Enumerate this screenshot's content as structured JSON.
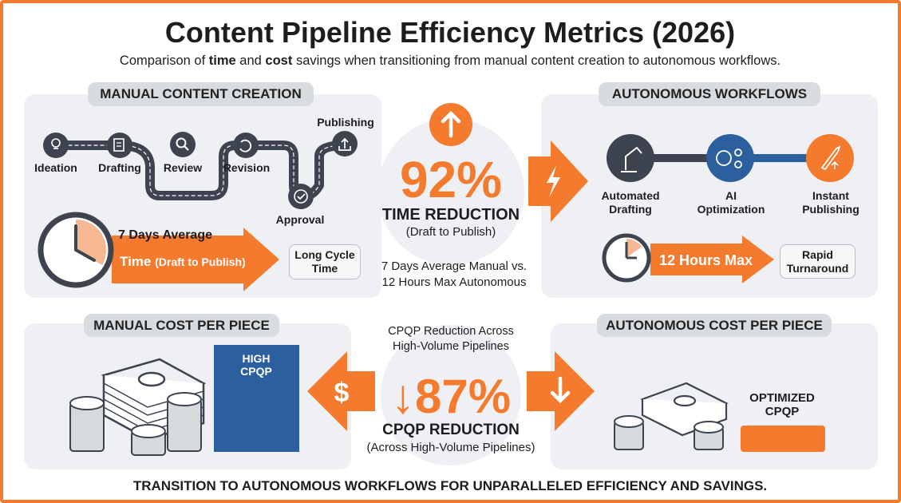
{
  "title": "Content Pipeline Efficiency Metrics (2026)",
  "subtitle": {
    "pre": "Comparison of ",
    "b1": "time",
    "mid": " and ",
    "b2": "cost",
    "post": " savings when transitioning from manual content creation to autonomous workflows."
  },
  "manual": {
    "heading": "MANUAL CONTENT CREATION",
    "steps": [
      "Ideation",
      "Drafting",
      "Review",
      "Revision",
      "Approval",
      "Publishing"
    ],
    "step_icons": [
      "lightbulb-icon",
      "document-edit-icon",
      "search-icon",
      "refresh-icon",
      "check-icon",
      "upload-icon"
    ],
    "duration": "7 Days Average",
    "arrow_main": "Time",
    "arrow_sub": "(Draft to Publish)",
    "badge": "Long Cycle Time"
  },
  "time_metric": {
    "value": "92%",
    "label": "TIME REDUCTION",
    "sub": "(Draft to Publish)",
    "note_line1": "7 Days Average Manual vs.",
    "note_line2": "12 Hours Max Autonomous"
  },
  "autonomous": {
    "heading": "AUTONOMOUS WORKFLOWS",
    "steps": [
      {
        "line1": "Automated",
        "line2": "Drafting",
        "icon": "robot-arm-icon",
        "color": "#3d4450"
      },
      {
        "line1": "AI",
        "line2": "Optimization",
        "icon": "brain-gear-icon",
        "color": "#2b5f9e"
      },
      {
        "line1": "Instant",
        "line2": "Publishing",
        "icon": "rocket-icon",
        "color": "#f47a2e"
      }
    ],
    "duration": "12 Hours Max",
    "badge": "Rapid Turnaround"
  },
  "manual_cost": {
    "heading": "MANUAL COST PER PIECE",
    "bar_label_1": "HIGH",
    "bar_label_2": "CPQP"
  },
  "cost_metric": {
    "top_line1": "CPQP Reduction Across",
    "top_line2": "High-Volume Pipelines",
    "value": "↓87%",
    "label": "CPQP REDUCTION",
    "sub": "(Across High-Volume Pipelines)"
  },
  "auto_cost": {
    "heading": "AUTONOMOUS COST PER PIECE",
    "bar_label_1": "OPTIMIZED",
    "bar_label_2": "CPQP"
  },
  "footer": "TRANSITION TO AUTONOMOUS WORKFLOWS FOR UNPARALLELED EFFICIENCY AND SAVINGS.",
  "colors": {
    "accent": "#f47a2e",
    "dark": "#3d4450",
    "blue": "#2b5f9e",
    "panel": "#eef0f3"
  }
}
